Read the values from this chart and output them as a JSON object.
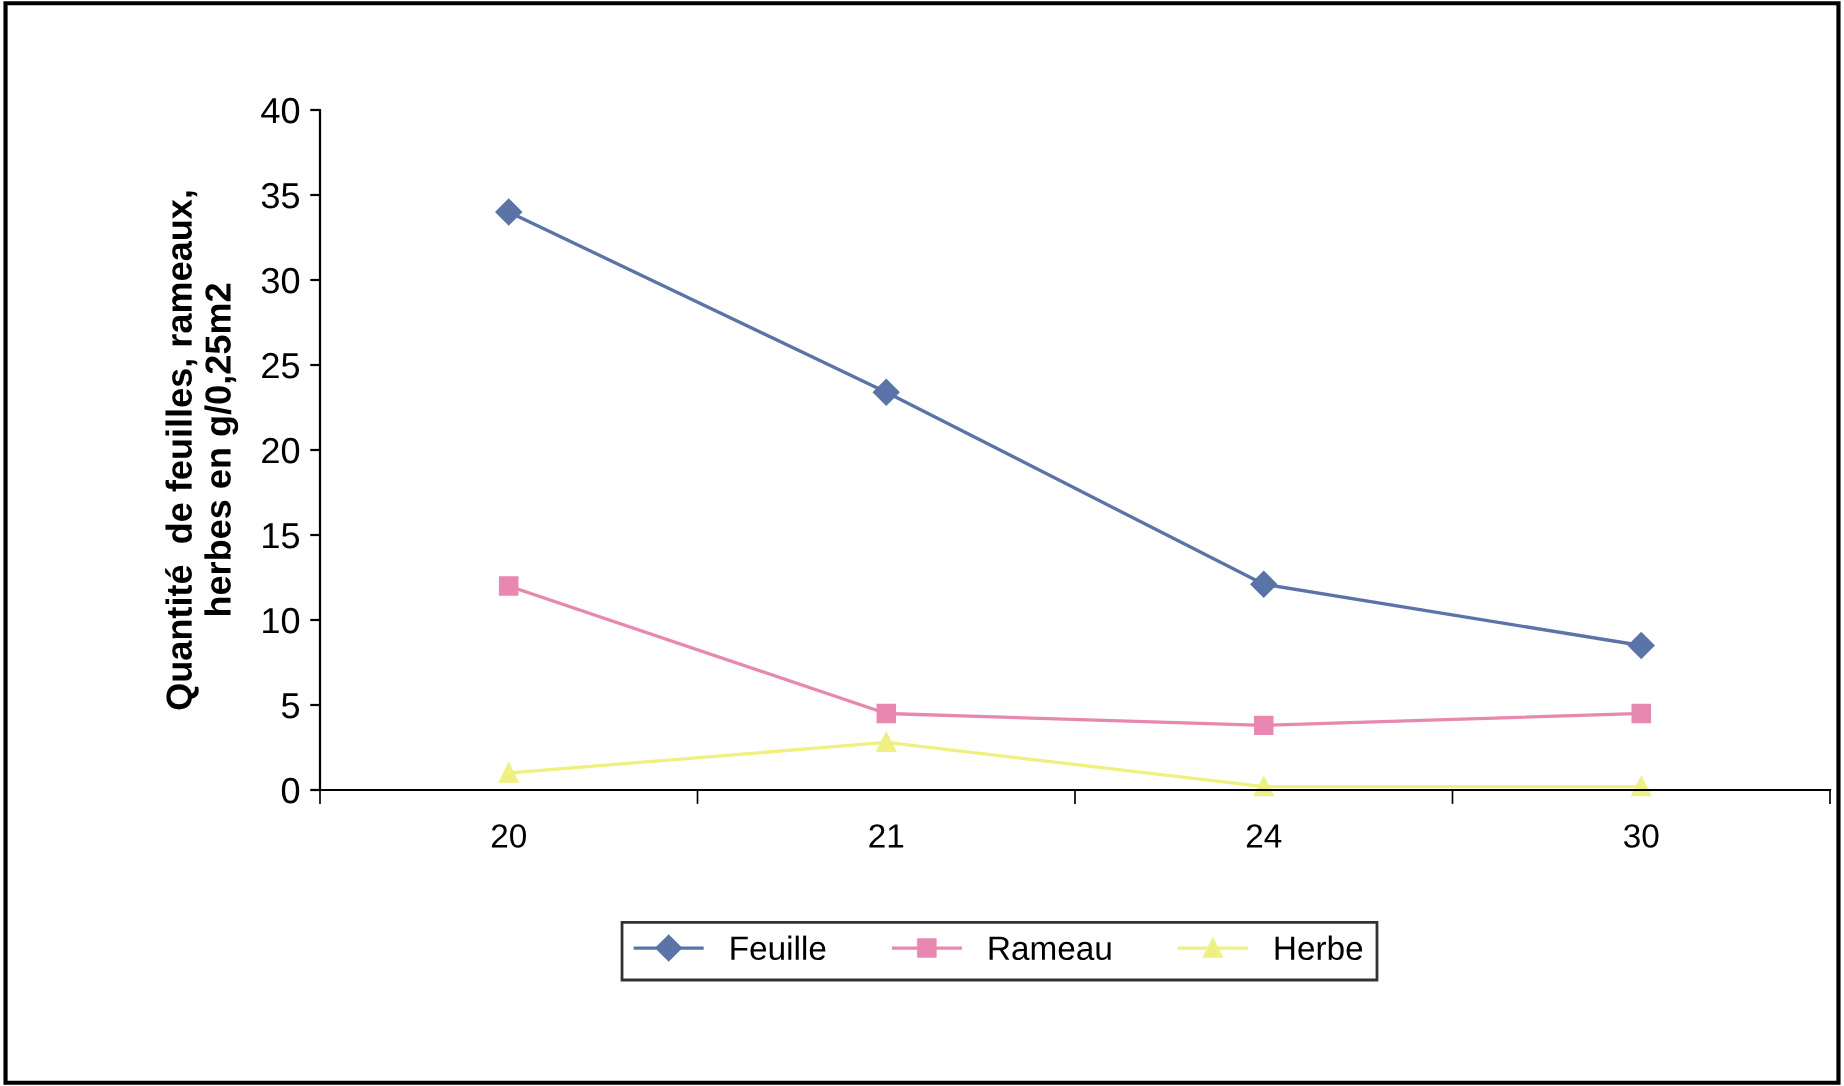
{
  "chart_data": {
    "type": "line",
    "ylabel": "Quantité  de feuilles, rameaux,\nherbes en g/0,25m2",
    "categories": [
      "20",
      "21",
      "24",
      "30"
    ],
    "series": [
      {
        "name": "Feuille",
        "color": "#5a74a8",
        "values": [
          34,
          23.4,
          12.1,
          8.5
        ],
        "marker": "diamond"
      },
      {
        "name": "Rameau",
        "color": "#e888b0",
        "values": [
          12,
          4.5,
          3.8,
          4.5
        ],
        "marker": "square"
      },
      {
        "name": "Herbe",
        "color": "#f0f080",
        "values": [
          1,
          2.8,
          0.2,
          0.2
        ],
        "marker": "triangle"
      }
    ],
    "ylim": [
      0,
      40
    ],
    "yticks": [
      0,
      5,
      10,
      15,
      20,
      25,
      30,
      35,
      40
    ],
    "grid": false,
    "legend": "bottom",
    "line_style": "solid"
  }
}
